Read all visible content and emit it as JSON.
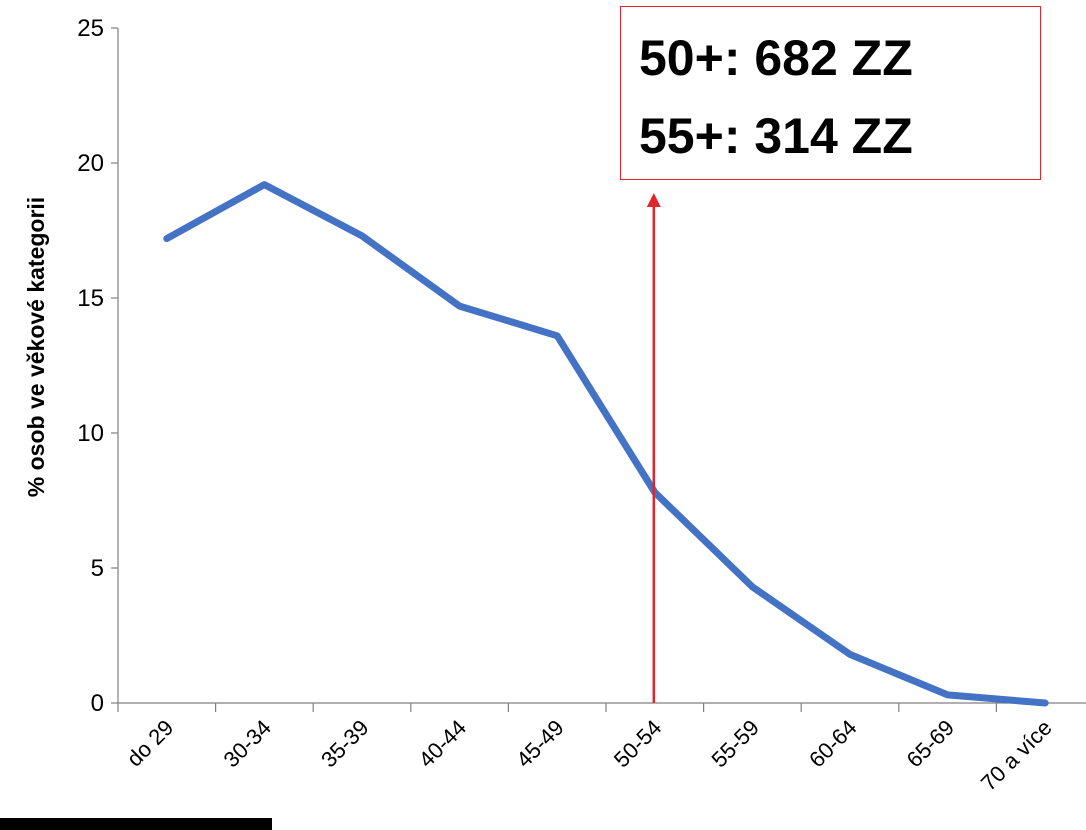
{
  "chart_data": {
    "type": "line",
    "title": "",
    "xlabel": "",
    "ylabel": "% osob ve věkové kategorii",
    "categories": [
      "do 29",
      "30-34",
      "35-39",
      "40-44",
      "45-49",
      "50-54",
      "55-59",
      "60-64",
      "65-69",
      "70 a více"
    ],
    "series": [
      {
        "values": [
          17.2,
          19.2,
          17.3,
          14.7,
          13.6,
          7.8,
          4.3,
          1.8,
          0.3,
          0.0
        ]
      }
    ],
    "ylim": [
      0,
      25
    ],
    "yticks": [
      "0",
      "5",
      "10",
      "15",
      "20",
      "25"
    ],
    "grid": false,
    "line_color": "#4472c4",
    "arrow_color": "#e0262b",
    "arrow_at_category": "50-54"
  },
  "callout": {
    "line1": "50+: 682 ZZ",
    "line2": "55+: 314 ZZ"
  }
}
